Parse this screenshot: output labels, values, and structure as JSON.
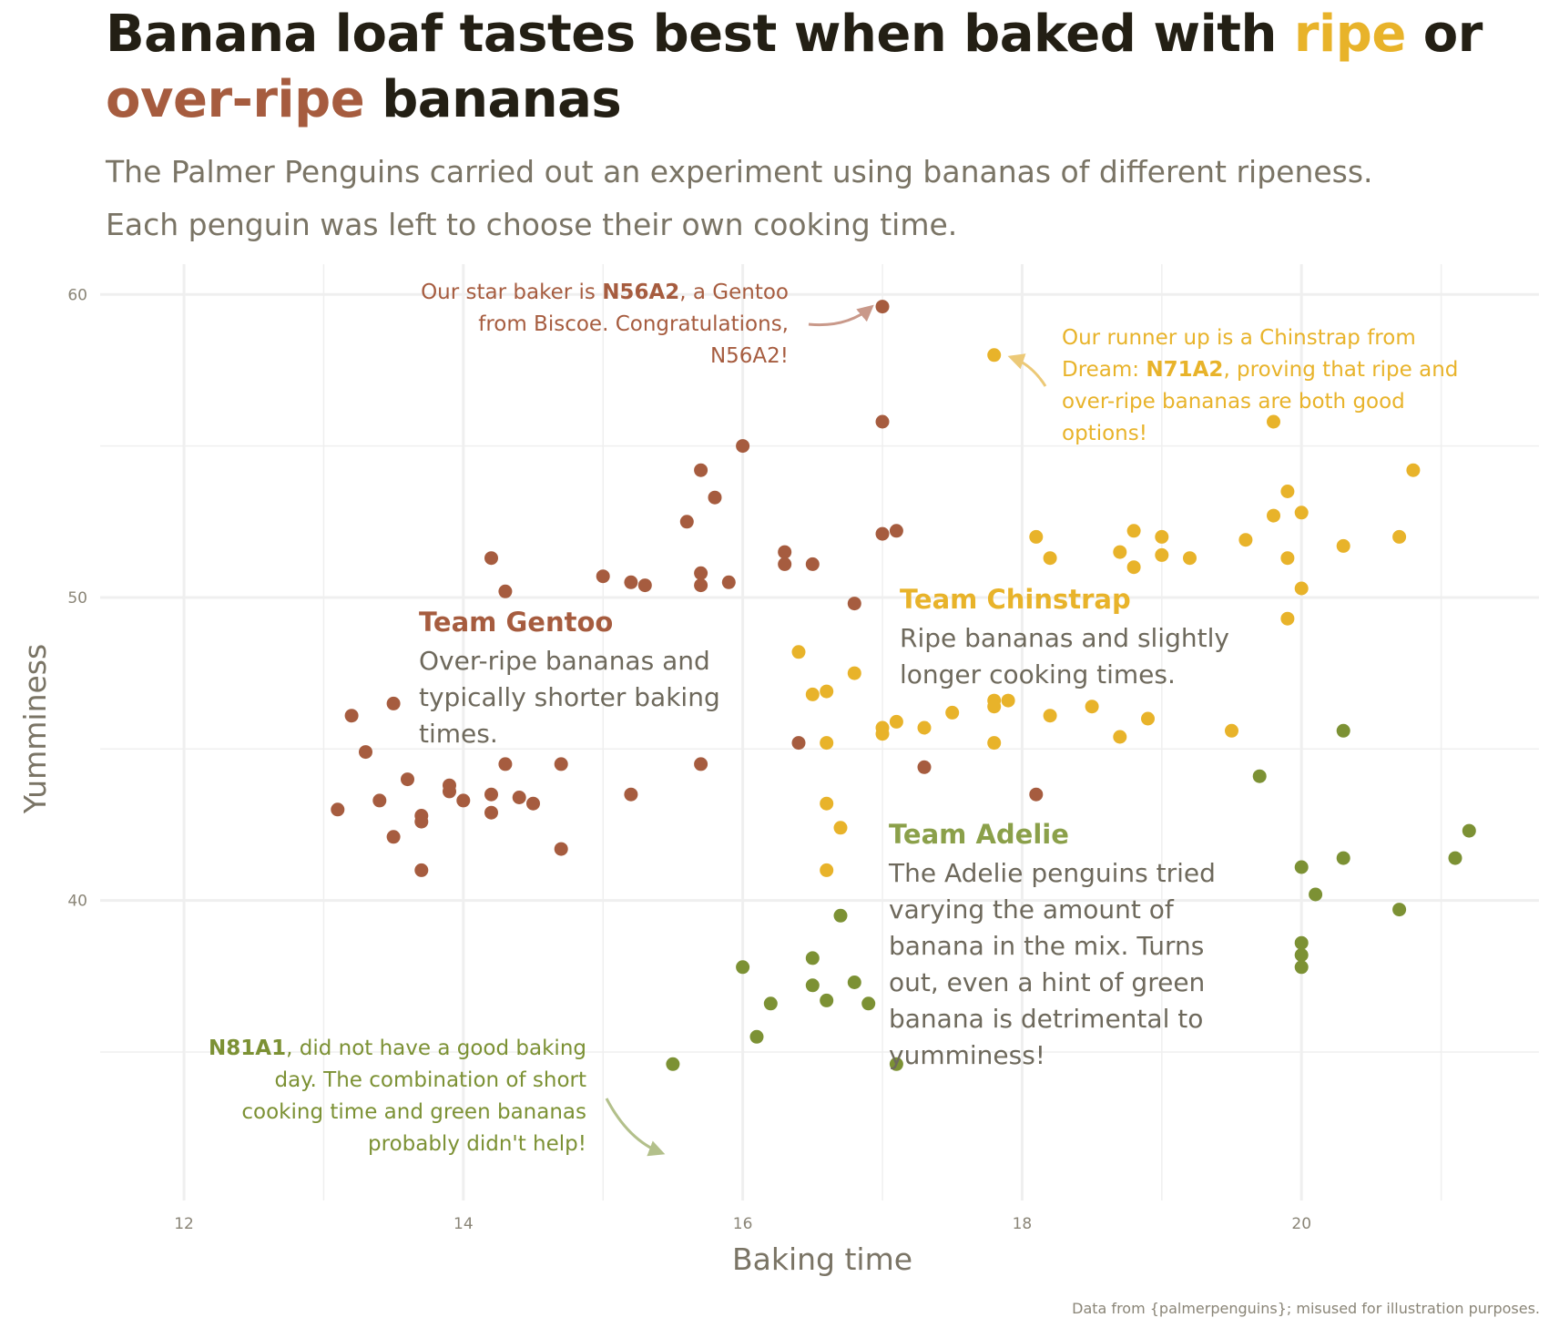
{
  "title": {
    "part1": "Banana loaf tastes best when baked with ",
    "ripe": "ripe",
    "part2": " or ",
    "overripe": "over-ripe",
    "part3": " bananas"
  },
  "subtitle": {
    "line1": "The Palmer Penguins carried out an experiment using bananas of different ripeness.",
    "line2": "Each penguin was left to choose their own cooking time."
  },
  "caption": "Data from {palmerpenguins}; misused for illustration purposes.",
  "colors": {
    "gentoo": "#a65c3f",
    "chinstrap": "#e8b32a",
    "adelie": "#7c9134",
    "title": "#231f14",
    "subtitle": "#7a7465",
    "grid": "#efefef"
  },
  "annotations": {
    "gentoo_title": "Team Gentoo",
    "gentoo_text": [
      "Over-ripe bananas and",
      "typically shorter baking",
      "times."
    ],
    "chinstrap_title": "Team Chinstrap",
    "chinstrap_text": [
      "Ripe bananas and slightly",
      "longer cooking times."
    ],
    "adelie_title": "Team Adelie",
    "adelie_text": [
      "The Adelie penguins tried",
      "varying the amount of",
      "banana in the mix. Turns",
      "out, even a hint of green",
      "banana is detrimental to",
      "yumminess!"
    ],
    "star": {
      "prefix": "Our star baker is ",
      "id": "N56A2",
      "line1_suffix": ", a Gentoo",
      "line2": "from Biscoe. Congratulations,",
      "line3": "N56A2!"
    },
    "runner": {
      "line1": "Our runner up is a Chinstrap from",
      "prefix": "Dream: ",
      "id": "N71A2",
      "line2_suffix": ", proving that ripe and",
      "line3": "over-ripe bananas are both good",
      "line4": "options!"
    },
    "worst": {
      "id": "N81A1",
      "line1_suffix": ", did not have a good baking",
      "line2": "day. The combination of short",
      "line3": "cooking time and green bananas",
      "line4": "probably didn't help!"
    }
  },
  "chart_data": {
    "type": "scatter",
    "xlabel": "Baking time",
    "ylabel": "Yumminess",
    "xlim": [
      11.4,
      21.7
    ],
    "ylim": [
      30.1,
      61
    ],
    "xticks": [
      12,
      14,
      16,
      18,
      20
    ],
    "yticks": [
      40,
      50,
      60
    ],
    "grid": true,
    "series": [
      {
        "name": "Gentoo",
        "color": "#a65c3f",
        "points": [
          [
            13.1,
            43
          ],
          [
            13.2,
            46.1
          ],
          [
            13.3,
            44.9
          ],
          [
            13.4,
            43.3
          ],
          [
            13.5,
            42.1
          ],
          [
            13.5,
            46.5
          ],
          [
            13.6,
            44
          ],
          [
            13.7,
            42.8
          ],
          [
            13.7,
            42.6
          ],
          [
            13.7,
            41
          ],
          [
            13.9,
            43.8
          ],
          [
            13.9,
            43.6
          ],
          [
            14,
            43.3
          ],
          [
            14.2,
            42.9
          ],
          [
            14.2,
            43.5
          ],
          [
            14.2,
            51.3
          ],
          [
            14.3,
            44.5
          ],
          [
            14.3,
            50.2
          ],
          [
            14.4,
            43.4
          ],
          [
            14.5,
            43.2
          ],
          [
            14.7,
            41.7
          ],
          [
            14.7,
            44.5
          ],
          [
            15,
            50.7
          ],
          [
            15.2,
            43.5
          ],
          [
            15.2,
            50.5
          ],
          [
            15.3,
            50.4
          ],
          [
            15.6,
            52.5
          ],
          [
            15.7,
            54.2
          ],
          [
            15.7,
            50.8
          ],
          [
            15.7,
            50.4
          ],
          [
            15.7,
            44.5
          ],
          [
            15.8,
            53.3
          ],
          [
            15.9,
            50.5
          ],
          [
            16,
            55
          ],
          [
            16.3,
            51.5
          ],
          [
            16.3,
            51.1
          ],
          [
            16.4,
            45.2
          ],
          [
            16.5,
            51.1
          ],
          [
            16.8,
            49.8
          ],
          [
            17,
            59.6
          ],
          [
            17,
            55.8
          ],
          [
            17,
            52.1
          ],
          [
            17.1,
            52.2
          ],
          [
            17.3,
            44.4
          ],
          [
            18.1,
            43.5
          ]
        ]
      },
      {
        "name": "Chinstrap",
        "color": "#e8b32a",
        "points": [
          [
            16.4,
            48.2
          ],
          [
            16.5,
            46.8
          ],
          [
            16.6,
            46.9
          ],
          [
            16.6,
            45.2
          ],
          [
            16.6,
            43.2
          ],
          [
            16.6,
            41
          ],
          [
            16.7,
            42.4
          ],
          [
            16.8,
            47.5
          ],
          [
            17,
            45.7
          ],
          [
            17,
            45.5
          ],
          [
            17.1,
            45.9
          ],
          [
            17.3,
            45.7
          ],
          [
            17.5,
            46.2
          ],
          [
            17.8,
            58
          ],
          [
            17.8,
            46.6
          ],
          [
            17.8,
            46.4
          ],
          [
            17.8,
            45.2
          ],
          [
            17.9,
            46.6
          ],
          [
            18.1,
            52
          ],
          [
            18.2,
            51.3
          ],
          [
            18.2,
            46.1
          ],
          [
            18.5,
            46.4
          ],
          [
            18.7,
            51.5
          ],
          [
            18.7,
            45.4
          ],
          [
            18.8,
            52.2
          ],
          [
            18.8,
            51
          ],
          [
            18.9,
            46
          ],
          [
            19,
            52
          ],
          [
            19,
            51.4
          ],
          [
            19.2,
            51.3
          ],
          [
            19.5,
            45.6
          ],
          [
            19.6,
            51.9
          ],
          [
            19.8,
            55.8
          ],
          [
            19.8,
            52.7
          ],
          [
            19.9,
            53.5
          ],
          [
            19.9,
            51.3
          ],
          [
            19.9,
            49.3
          ],
          [
            20,
            52.8
          ],
          [
            20,
            50.3
          ],
          [
            20.3,
            51.7
          ],
          [
            20.7,
            52
          ],
          [
            20.8,
            54.2
          ]
        ]
      },
      {
        "name": "Adelie",
        "color": "#7c9134",
        "points": [
          [
            15.5,
            34.6
          ],
          [
            16,
            37.8
          ],
          [
            16.1,
            35.5
          ],
          [
            16.2,
            36.6
          ],
          [
            16.5,
            38.1
          ],
          [
            16.5,
            37.2
          ],
          [
            16.6,
            36.7
          ],
          [
            16.7,
            39.5
          ],
          [
            16.8,
            37.3
          ],
          [
            16.9,
            36.6
          ],
          [
            17.1,
            34.6
          ],
          [
            19.7,
            44.1
          ],
          [
            20,
            41.1
          ],
          [
            20,
            38.6
          ],
          [
            20,
            38.2
          ],
          [
            20,
            37.8
          ],
          [
            20.1,
            40.2
          ],
          [
            20.3,
            45.6
          ],
          [
            20.3,
            41.4
          ],
          [
            20.7,
            39.7
          ],
          [
            21.1,
            41.4
          ],
          [
            21.2,
            42.3
          ]
        ]
      }
    ]
  }
}
